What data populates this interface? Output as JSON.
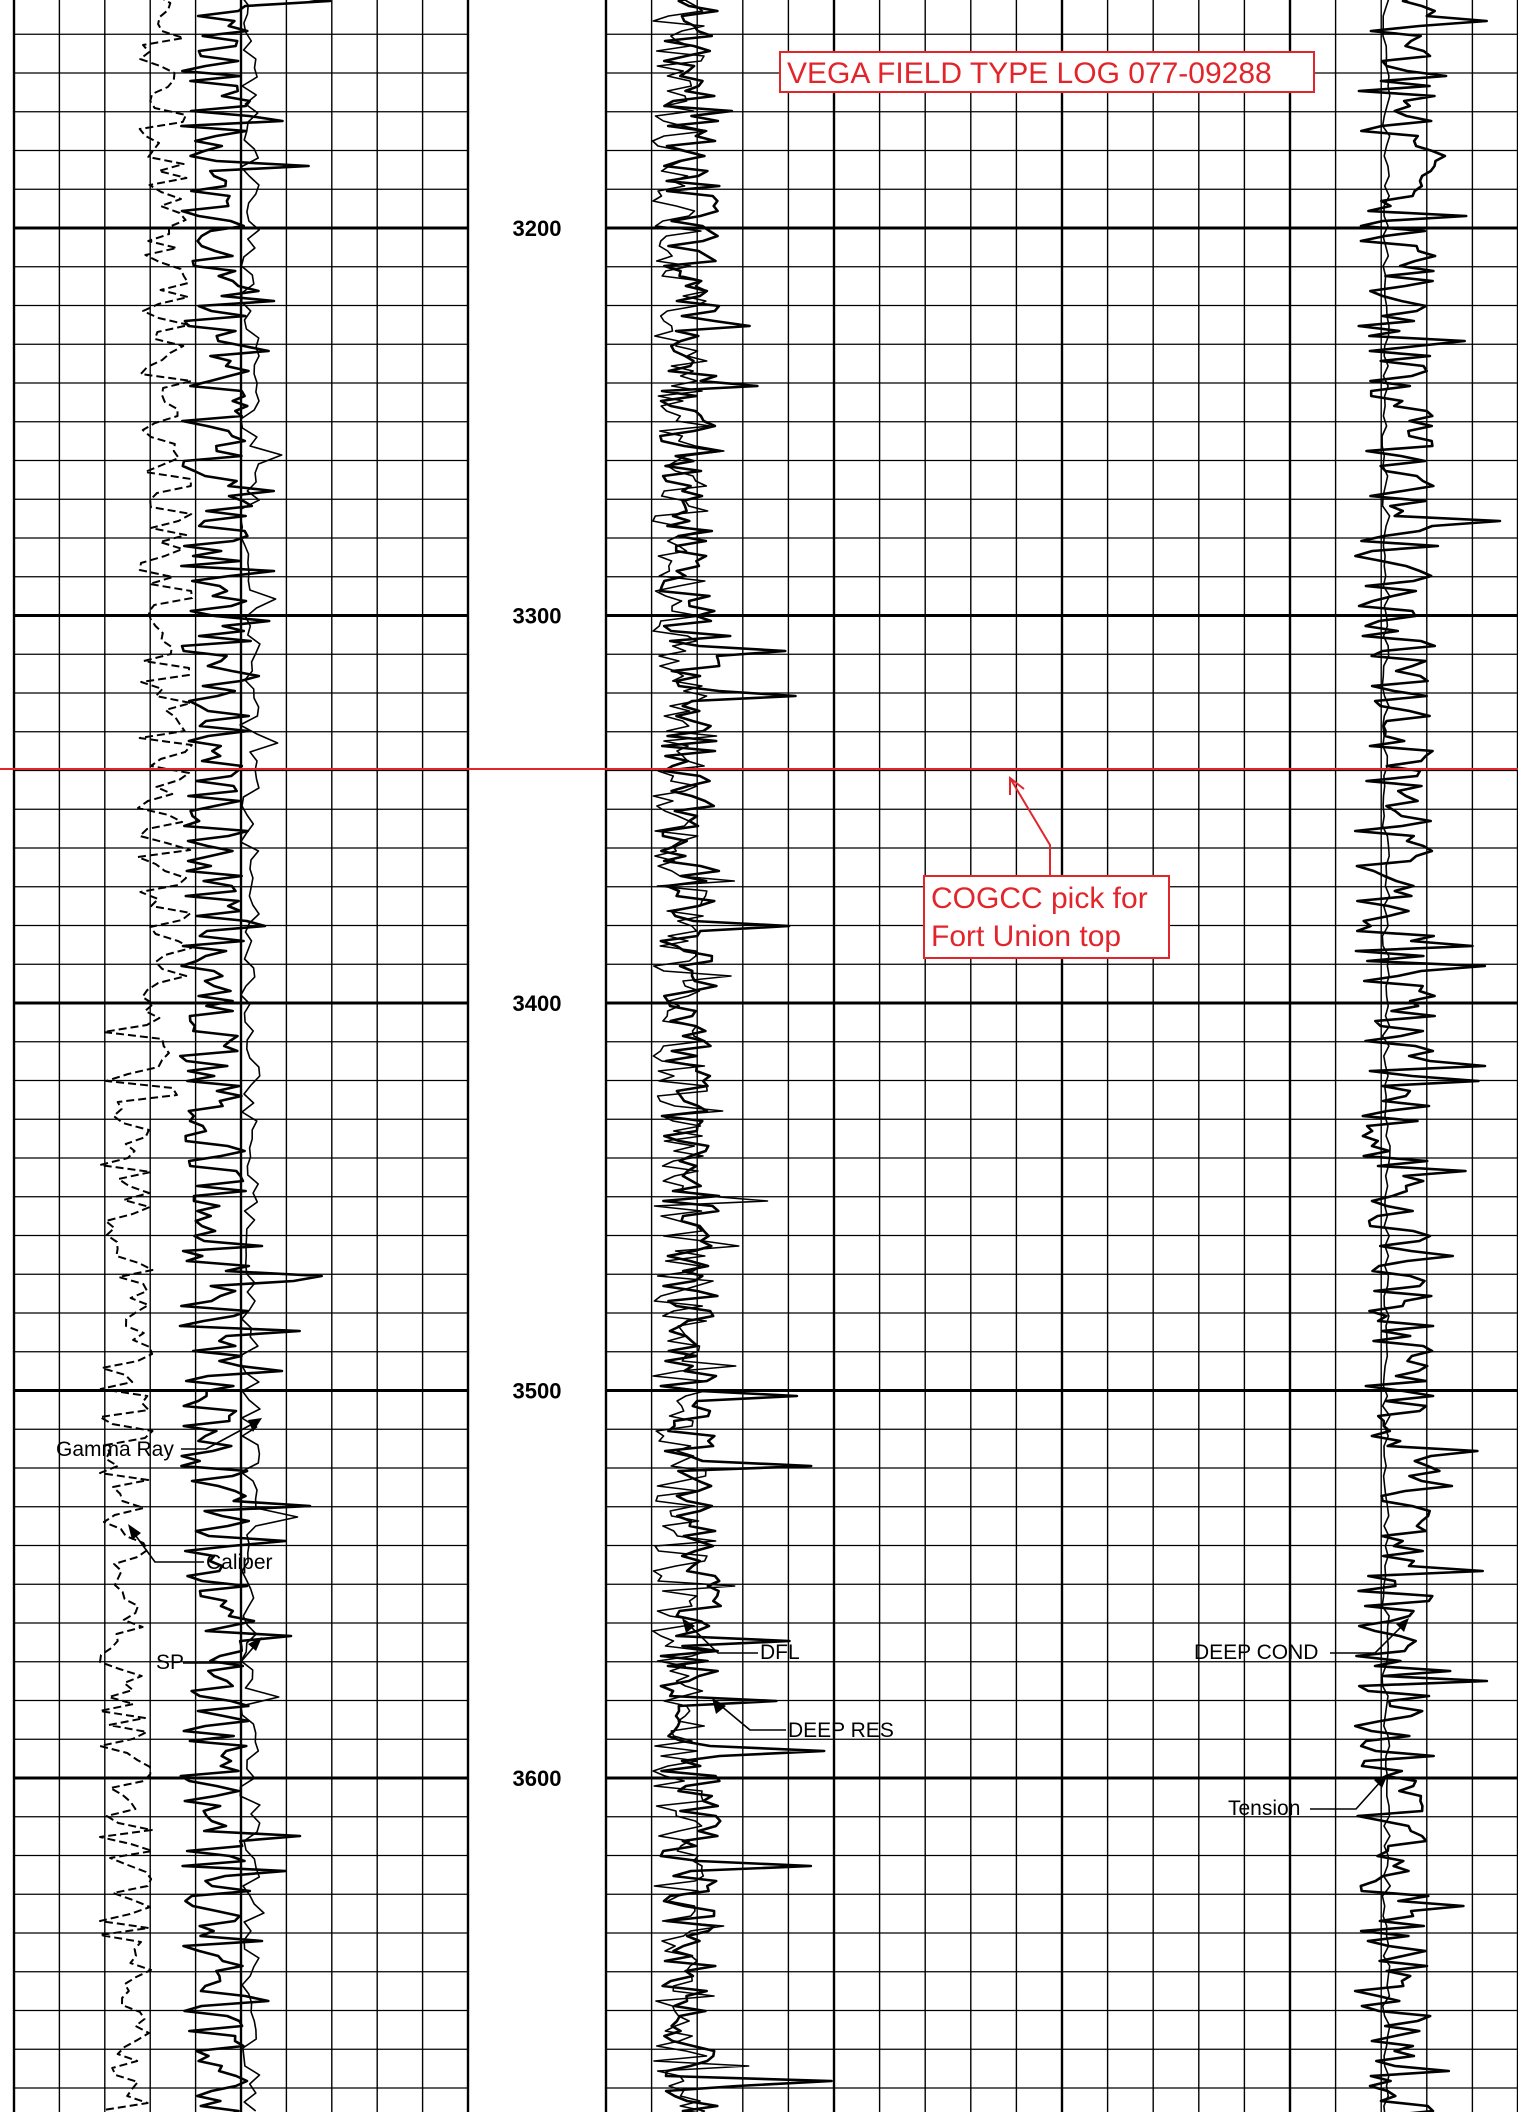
{
  "title": "VEGA FIELD TYPE LOG 077-09288",
  "annotation": {
    "line1": "COGCC pick for",
    "line2": "Fort Union top",
    "pick_depth": 3340,
    "color": "#e2242b"
  },
  "labels": {
    "gamma_ray": "Gamma Ray",
    "caliper": "Caliper",
    "sp": "SP",
    "dfl": "DFL",
    "deep_res": "DEEP RES",
    "deep_cond": "DEEP COND",
    "tension": "Tension"
  },
  "chart_data": {
    "type": "line",
    "title": "VEGA FIELD TYPE LOG 077-09288",
    "depth_axis": {
      "labels": [
        "3200",
        "3300",
        "3400",
        "3500",
        "3600"
      ],
      "values": [
        3200,
        3300,
        3400,
        3500,
        3600
      ],
      "range": [
        3141,
        3686
      ],
      "minor_interval": 10,
      "major_interval": 100
    },
    "grid": true,
    "tracks": [
      {
        "name": "track-1",
        "curves": [
          "Gamma Ray",
          "Caliper",
          "SP"
        ]
      },
      {
        "name": "track-2",
        "curves": [
          "DFL",
          "DEEP RES"
        ]
      },
      {
        "name": "track-3",
        "curves": [
          "DEEP COND",
          "Tension"
        ]
      }
    ],
    "series": [
      {
        "name": "Gamma Ray"
      },
      {
        "name": "Caliper"
      },
      {
        "name": "SP"
      },
      {
        "name": "DFL"
      },
      {
        "name": "DEEP RES"
      },
      {
        "name": "DEEP COND"
      },
      {
        "name": "Tension"
      }
    ]
  }
}
